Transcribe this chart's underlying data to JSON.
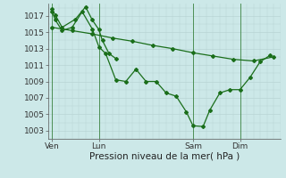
{
  "bg_color": "#cce8e8",
  "grid_color": "#b8d4d4",
  "line_color": "#1a6e1a",
  "line_width": 0.9,
  "marker": "D",
  "marker_size": 2.0,
  "ylabel_ticks": [
    1003,
    1005,
    1007,
    1009,
    1011,
    1013,
    1015,
    1017
  ],
  "ylim": [
    1002.0,
    1018.5
  ],
  "xlabel": "Pression niveau de la mer( hPa )",
  "xlabel_fontsize": 7.5,
  "tick_fontsize": 6.5,
  "x_tick_labels": [
    "Ven",
    "Lun",
    "Sam",
    "Dim"
  ],
  "x_tick_positions": [
    0,
    7,
    21,
    28
  ],
  "x_vlines": [
    0,
    7,
    21,
    28
  ],
  "xlim": [
    -0.5,
    34
  ],
  "series1": {
    "x": [
      0,
      0.5,
      1.5,
      3.5,
      5.0,
      6.0,
      7.0,
      7.5,
      8.5,
      9.5
    ],
    "y": [
      1017.8,
      1017.1,
      1015.6,
      1016.6,
      1018.1,
      1016.5,
      1015.3,
      1014.0,
      1012.4,
      1011.8
    ]
  },
  "series2": {
    "x": [
      0,
      3,
      6,
      9,
      12,
      15,
      18,
      21,
      24,
      27,
      30,
      33
    ],
    "y": [
      1015.6,
      1015.2,
      1014.8,
      1014.3,
      1013.9,
      1013.4,
      1013.0,
      1012.5,
      1012.1,
      1011.7,
      1011.5,
      1012.0
    ]
  },
  "series3": {
    "x": [
      0,
      0.5,
      1.5,
      3.0,
      4.5,
      6.0,
      7.0,
      8.0,
      9.5,
      11.0,
      12.5,
      14.0,
      15.5,
      17.0,
      18.5,
      20.0,
      21.0,
      22.5,
      23.5,
      25.0,
      26.5,
      28.0,
      29.5,
      31.0,
      32.5
    ],
    "y": [
      1017.5,
      1016.5,
      1015.2,
      1015.6,
      1017.5,
      1015.4,
      1013.2,
      1012.4,
      1009.2,
      1009.0,
      1010.5,
      1009.0,
      1009.0,
      1007.6,
      1007.2,
      1005.3,
      1003.6,
      1003.5,
      1005.5,
      1007.6,
      1008.0,
      1008.0,
      1009.5,
      1011.4,
      1012.2
    ]
  }
}
